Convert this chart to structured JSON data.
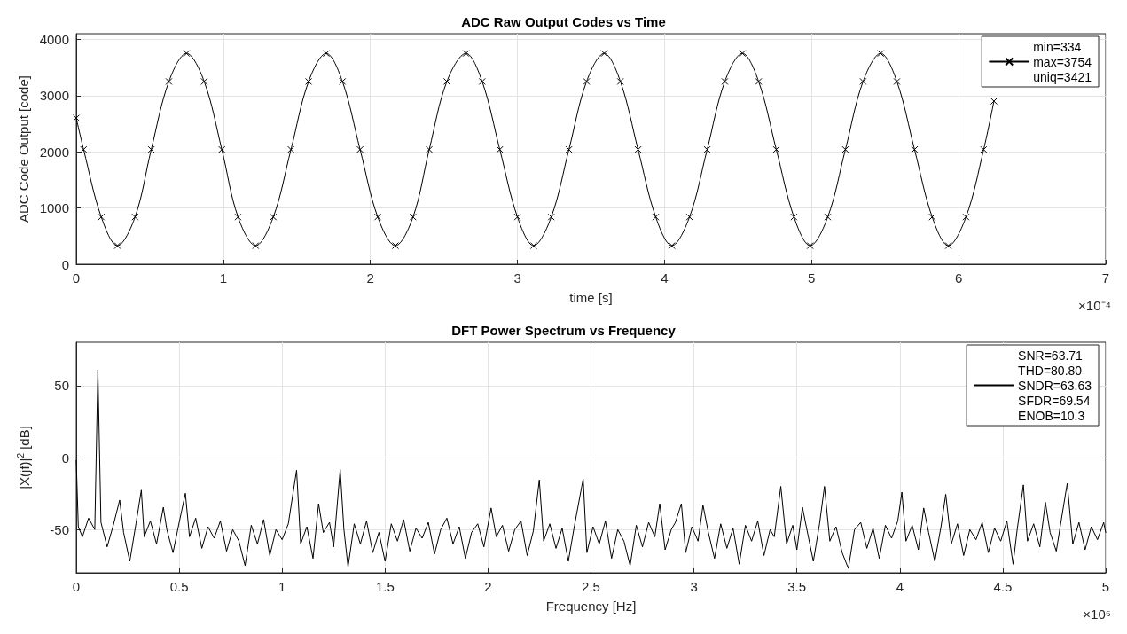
{
  "chart_data": [
    {
      "type": "line",
      "title": "ADC Raw Output Codes vs Time",
      "xlabel": "time [s]",
      "ylabel": "ADC Code Output [code]",
      "annotations": [
        "×10⁻⁴"
      ],
      "xlim": [
        0,
        7
      ],
      "xticks": [
        0,
        1,
        2,
        3,
        4,
        5,
        6,
        7
      ],
      "ylim": [
        0,
        4100
      ],
      "yticks": [
        0,
        1000,
        2000,
        3000,
        4000
      ],
      "grid": true,
      "legend": "top right",
      "marker": "cross",
      "line_style": "solid",
      "series": [
        {
          "name": "min=334\nmax=3754\nuniq=3421",
          "color": "#000000",
          "x": [
            0,
            0.05,
            0.17,
            0.28,
            0.4,
            0.51,
            0.63,
            0.75,
            0.87,
            0.99,
            1.1,
            1.22,
            1.34,
            1.46,
            1.58,
            1.7,
            1.81,
            1.93,
            2.05,
            2.17,
            2.29,
            2.4,
            2.52,
            2.65,
            2.76,
            2.88,
            3.0,
            3.11,
            3.23,
            3.35,
            3.47,
            3.59,
            3.7,
            3.82,
            3.94,
            4.05,
            4.17,
            4.29,
            4.41,
            4.53,
            4.64,
            4.76,
            4.88,
            4.99,
            5.11,
            5.23,
            5.35,
            5.47,
            5.58,
            5.7,
            5.82,
            5.93,
            6.05,
            6.17,
            6.24
          ],
          "values": [
            2600,
            2040,
            840,
            330,
            840,
            2040,
            3250,
            3750,
            3250,
            2040,
            840,
            330,
            840,
            2040,
            3250,
            3750,
            3250,
            2040,
            840,
            330,
            840,
            2040,
            3250,
            3750,
            3250,
            2040,
            840,
            330,
            840,
            2040,
            3250,
            3750,
            3250,
            2040,
            840,
            330,
            840,
            2040,
            3250,
            3750,
            3250,
            2040,
            840,
            330,
            840,
            2040,
            3250,
            3750,
            3250,
            2040,
            840,
            330,
            840,
            2040,
            2900
          ]
        }
      ]
    },
    {
      "type": "line",
      "title": "DFT Power Spectrum vs Frequency",
      "xlabel": "Frequency [Hz]",
      "ylabel": "|X(jf)|$^{2}$ [dB]",
      "annotations": [
        "×10⁵"
      ],
      "xlim": [
        0,
        5
      ],
      "xticks": [
        0,
        0.5,
        1,
        1.5,
        2,
        2.5,
        3,
        3.5,
        4,
        4.5,
        5
      ],
      "ylim": [
        -80,
        80
      ],
      "yticks": [
        -50,
        0,
        50
      ],
      "grid": true,
      "legend": "top right",
      "marker": "none",
      "line_style": "solid",
      "series": [
        {
          "name": "SNR=63.71\nTHD=80.80\nSNDR=63.63\nSFDR=69.54\nENOB=10.3",
          "color": "#000000",
          "x": [
            0,
            0.01,
            0.03,
            0.06,
            0.09,
            0.105,
            0.12,
            0.15,
            0.18,
            0.211,
            0.23,
            0.26,
            0.29,
            0.316,
            0.33,
            0.36,
            0.39,
            0.423,
            0.44,
            0.47,
            0.5,
            0.53,
            0.55,
            0.58,
            0.61,
            0.64,
            0.67,
            0.7,
            0.73,
            0.76,
            0.79,
            0.82,
            0.85,
            0.88,
            0.91,
            0.94,
            0.97,
            1,
            1.03,
            1.07,
            1.09,
            1.12,
            1.15,
            1.177,
            1.2,
            1.23,
            1.25,
            1.282,
            1.3,
            1.32,
            1.35,
            1.38,
            1.41,
            1.44,
            1.47,
            1.5,
            1.53,
            1.56,
            1.59,
            1.62,
            1.65,
            1.68,
            1.71,
            1.74,
            1.77,
            1.8,
            1.83,
            1.86,
            1.89,
            1.92,
            1.95,
            1.98,
            2.015,
            2.04,
            2.07,
            2.1,
            2.13,
            2.16,
            2.19,
            2.22,
            2.249,
            2.27,
            2.3,
            2.33,
            2.36,
            2.39,
            2.42,
            2.462,
            2.48,
            2.51,
            2.54,
            2.57,
            2.6,
            2.63,
            2.66,
            2.69,
            2.72,
            2.75,
            2.78,
            2.81,
            2.834,
            2.86,
            2.89,
            2.91,
            2.939,
            2.96,
            2.99,
            3.02,
            3.044,
            3.07,
            3.1,
            3.13,
            3.16,
            3.19,
            3.22,
            3.25,
            3.28,
            3.31,
            3.34,
            3.37,
            3.39,
            3.422,
            3.45,
            3.48,
            3.5,
            3.527,
            3.55,
            3.58,
            3.61,
            3.634,
            3.66,
            3.69,
            3.72,
            3.75,
            3.78,
            3.81,
            3.84,
            3.87,
            3.9,
            3.93,
            3.96,
            3.99,
            4.01,
            4.03,
            4.06,
            4.09,
            4.116,
            4.14,
            4.17,
            4.2,
            4.223,
            4.25,
            4.28,
            4.31,
            4.34,
            4.37,
            4.4,
            4.43,
            4.46,
            4.49,
            4.52,
            4.55,
            4.57,
            4.6,
            4.62,
            4.65,
            4.68,
            4.707,
            4.73,
            4.76,
            4.78,
            4.813,
            4.84,
            4.87,
            4.9,
            4.93,
            4.96,
            4.99,
            5
          ],
          "values": [
            -2,
            -48,
            -55,
            -42,
            -50,
            61,
            -45,
            -62,
            -47,
            -29.5,
            -52,
            -72,
            -46,
            -22.6,
            -55,
            -44,
            -60,
            -34.5,
            -50,
            -66,
            -45,
            -24.8,
            -55,
            -42,
            -63,
            -48,
            -56,
            -44,
            -65,
            -50,
            -58,
            -75,
            -47,
            -60,
            -43,
            -68,
            -50,
            -57,
            -46,
            -8.8,
            -60,
            -48,
            -70,
            -32,
            -52,
            -45,
            -62,
            -8.3,
            -50,
            -76,
            -46,
            -60,
            -44,
            -66,
            -52,
            -72,
            -46,
            -58,
            -43,
            -65,
            -49,
            -56,
            -45,
            -67,
            -50,
            -42,
            -60,
            -48,
            -70,
            -52,
            -46,
            -62,
            -35,
            -55,
            -47,
            -65,
            -50,
            -44,
            -68,
            -51,
            -15.5,
            -58,
            -46,
            -63,
            -49,
            -72,
            -47,
            -14.8,
            -66,
            -48,
            -60,
            -44,
            -70,
            -50,
            -58,
            -75,
            -47,
            -62,
            -45,
            -55,
            -32,
            -64,
            -50,
            -45,
            -32,
            -66,
            -48,
            -58,
            -33,
            -52,
            -70,
            -46,
            -63,
            -49,
            -74,
            -47,
            -58,
            -44,
            -68,
            -50,
            -55,
            -20,
            -60,
            -47,
            -64,
            -34.5,
            -51,
            -72,
            -46,
            -20,
            -58,
            -48,
            -66,
            -77,
            -50,
            -45,
            -63,
            -49,
            -70,
            -47,
            -56,
            -44,
            -24,
            -58,
            -47,
            -64,
            -35,
            -52,
            -72,
            -48,
            -25.5,
            -60,
            -46,
            -68,
            -50,
            -57,
            -45,
            -66,
            -49,
            -58,
            -44,
            -74,
            -50,
            -19,
            -58,
            -46,
            -62,
            -31,
            -52,
            -65,
            -47,
            -18,
            -60,
            -45,
            -64,
            -48,
            -57,
            -45,
            -52
          ]
        }
      ]
    }
  ]
}
